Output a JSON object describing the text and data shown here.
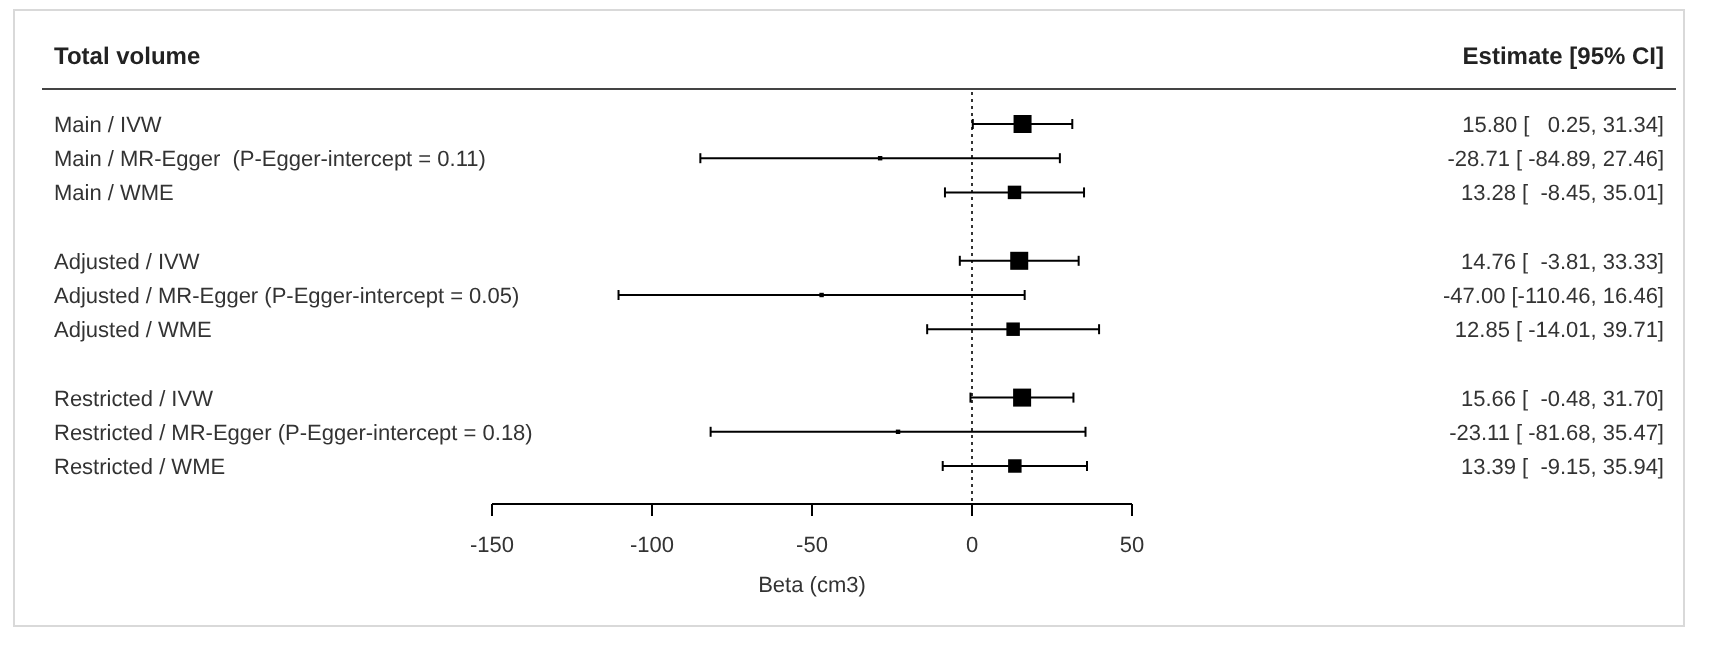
{
  "chart_data": {
    "type": "scatter",
    "orientation": "horizontal",
    "title": "Total volume",
    "xlabel": "Beta (cm3)",
    "annotations": [
      "Estimate [95% CI]"
    ],
    "categories": [
      "Main / IVW",
      "Main / MR-Egger  (P-Egger-intercept = 0.11)",
      "Main / WME",
      null,
      "Adjusted / IVW",
      "Adjusted / MR-Egger (P-Egger-intercept = 0.05)",
      "Adjusted / WME",
      null,
      "Restricted / IVW",
      "Restricted / MR-Egger (P-Egger-intercept = 0.18)",
      "Restricted / WME"
    ],
    "values": [
      15.8,
      -28.71,
      13.28,
      null,
      14.76,
      -47.0,
      12.85,
      null,
      15.66,
      -23.11,
      13.39
    ],
    "errors": [
      [
        0.25,
        31.34
      ],
      [
        -84.89,
        27.46
      ],
      [
        -8.45,
        35.01
      ],
      null,
      [
        -3.81,
        33.33
      ],
      [
        -110.46,
        16.46
      ],
      [
        -14.01,
        39.71
      ],
      null,
      [
        -0.48,
        31.7
      ],
      [
        -81.68,
        35.47
      ],
      [
        -9.15,
        35.94
      ]
    ],
    "sizes": [
      1,
      0.06,
      0.56,
      null,
      1,
      0.06,
      0.56,
      null,
      1,
      0.06,
      0.56
    ],
    "value_labels": [
      "15.80 [   0.25, 31.34]",
      "-28.71 [ -84.89, 27.46]",
      "13.28 [  -8.45, 35.01]",
      null,
      "14.76 [  -3.81, 33.33]",
      "-47.00 [-110.46, 16.46]",
      "12.85 [ -14.01, 39.71]",
      null,
      "15.66 [  -0.48, 31.70]",
      "-23.11 [ -81.68, 35.47]",
      "13.39 [  -9.15, 35.94]"
    ],
    "color": "#000000",
    "marker": "square",
    "xlim": [
      -150,
      50
    ],
    "xticks": [
      -150,
      -100,
      -50,
      0,
      50
    ],
    "ref_lines": [
      {
        "axis": "x",
        "value": 0,
        "line_style": "dotted",
        "color": "#333333"
      }
    ],
    "grid": false
  }
}
